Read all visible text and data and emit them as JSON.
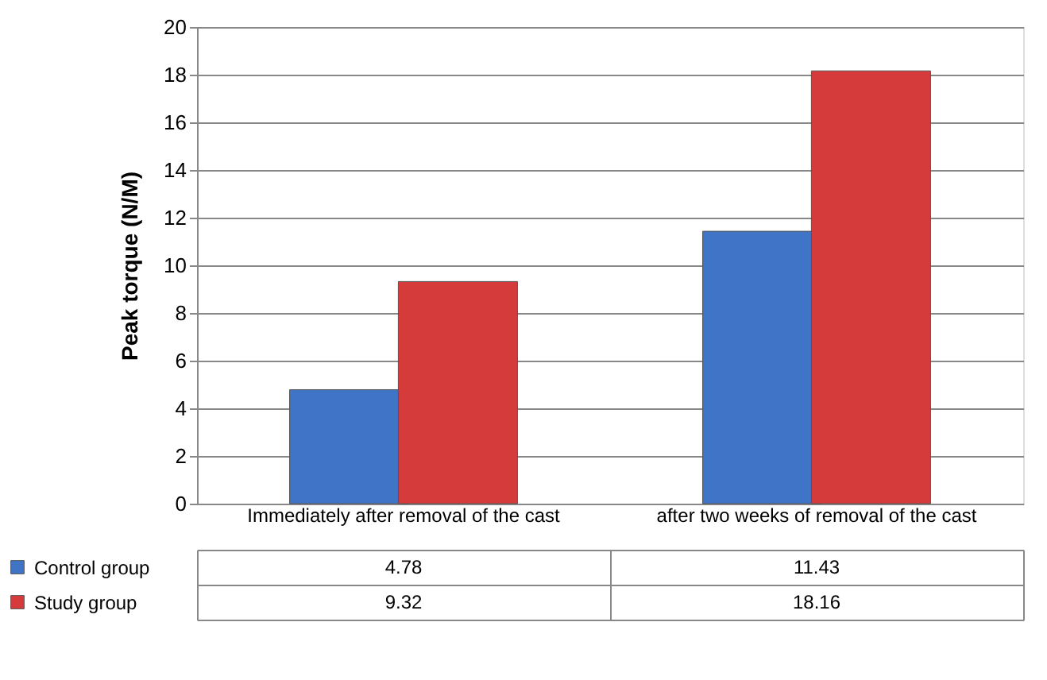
{
  "chart_data": {
    "type": "bar",
    "ylabel": "Peak torque (N/M)",
    "categories": [
      "Immediately after removal of the cast",
      "after two weeks of removal of the cast"
    ],
    "series": [
      {
        "name": "Control group",
        "color": "#3f74c6",
        "values": [
          4.78,
          11.43
        ]
      },
      {
        "name": "Study group",
        "color": "#d63b3b",
        "values": [
          9.32,
          18.16
        ]
      }
    ],
    "ylim": [
      0,
      20
    ],
    "yticks": [
      0,
      2,
      4,
      6,
      8,
      10,
      12,
      14,
      16,
      18,
      20
    ],
    "grid": "y",
    "legend": "bottom",
    "data_labels": true
  }
}
